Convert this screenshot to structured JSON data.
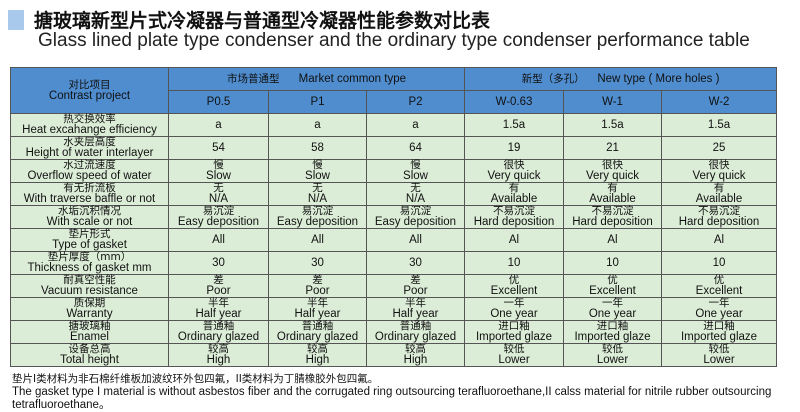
{
  "title_cn": "搪玻璃新型片式冷凝器与普通型冷凝器性能参数对比表",
  "title_en": "Glass lined plate type condenser and the ordinary type condenser performance table",
  "header": {
    "project_cn": "对比项目",
    "project_en": "Contrast project",
    "market_cn": "市场普通型",
    "market_en": "Market common type",
    "new_cn": "新型（多孔）",
    "new_en": "New type ( More holes )",
    "models": [
      "P0.5",
      "P1",
      "P2",
      "W-0.63",
      "W-1",
      "W-2"
    ]
  },
  "rows": [
    {
      "cn": "热交换效率",
      "en": "Heat excahange efficiency",
      "v": [
        [
          "",
          "a"
        ],
        [
          "",
          "a"
        ],
        [
          "",
          "a"
        ],
        [
          "",
          "1.5a"
        ],
        [
          "",
          "1.5a"
        ],
        [
          "",
          "1.5a"
        ]
      ]
    },
    {
      "cn": "水夹层高度",
      "en": "Height of water interlayer",
      "v": [
        [
          "",
          "54"
        ],
        [
          "",
          "58"
        ],
        [
          "",
          "64"
        ],
        [
          "",
          "19"
        ],
        [
          "",
          "21"
        ],
        [
          "",
          "25"
        ]
      ]
    },
    {
      "cn": "水过流速度",
      "en": "Overflow speed of water",
      "v": [
        [
          "慢",
          "Slow"
        ],
        [
          "慢",
          "Slow"
        ],
        [
          "慢",
          "Slow"
        ],
        [
          "很快",
          "Very quick"
        ],
        [
          "很快",
          "Very quick"
        ],
        [
          "很快",
          "Very quick"
        ]
      ]
    },
    {
      "cn": "有无折流板",
      "en": "With traverse baffle or not",
      "v": [
        [
          "无",
          "N/A"
        ],
        [
          "无",
          "N/A"
        ],
        [
          "无",
          "N/A"
        ],
        [
          "有",
          "Available"
        ],
        [
          "有",
          "Available"
        ],
        [
          "有",
          "Available"
        ]
      ]
    },
    {
      "cn": "水垢沉积情况",
      "en": "With scale or not",
      "v": [
        [
          "易沉淀",
          "Easy deposition"
        ],
        [
          "易沉淀",
          "Easy deposition"
        ],
        [
          "易沉淀",
          "Easy deposition"
        ],
        [
          "不易沉淀",
          "Hard deposition"
        ],
        [
          "不易沉淀",
          "Hard deposition"
        ],
        [
          "不易沉淀",
          "Hard deposition"
        ]
      ]
    },
    {
      "cn": "垫片形式",
      "en": "Type of gasket",
      "v": [
        [
          "",
          "All"
        ],
        [
          "",
          "All"
        ],
        [
          "",
          "All"
        ],
        [
          "",
          "Al"
        ],
        [
          "",
          "Al"
        ],
        [
          "",
          "Al"
        ]
      ]
    },
    {
      "cn": "垫片厚度（mm）",
      "en": "Thickness of gasket mm",
      "v": [
        [
          "",
          "30"
        ],
        [
          "",
          "30"
        ],
        [
          "",
          "30"
        ],
        [
          "",
          "10"
        ],
        [
          "",
          "10"
        ],
        [
          "",
          "10"
        ]
      ]
    },
    {
      "cn": "耐真空性能",
      "en": "Vacuum resistance",
      "v": [
        [
          "差",
          "Poor"
        ],
        [
          "差",
          "Poor"
        ],
        [
          "差",
          "Poor"
        ],
        [
          "优",
          "Excellent"
        ],
        [
          "优",
          "Excellent"
        ],
        [
          "优",
          "Excellent"
        ]
      ]
    },
    {
      "cn": "质保期",
      "en": "Warranty",
      "v": [
        [
          "半年",
          "Half year"
        ],
        [
          "半年",
          "Half year"
        ],
        [
          "半年",
          "Half year"
        ],
        [
          "一年",
          "One year"
        ],
        [
          "一年",
          "One year"
        ],
        [
          "一年",
          "One year"
        ]
      ]
    },
    {
      "cn": "搪玻璃釉",
      "en": "Enamel",
      "v": [
        [
          "普通釉",
          "Ordinary glazed"
        ],
        [
          "普通釉",
          "Ordinary glazed"
        ],
        [
          "普通釉",
          "Ordinary glazed"
        ],
        [
          "进口釉",
          "Imported glaze"
        ],
        [
          "进口釉",
          "Imported glaze"
        ],
        [
          "进口釉",
          "Imported glaze"
        ]
      ]
    },
    {
      "cn": "设备总高",
      "en": "Total height",
      "v": [
        [
          "较高",
          "High"
        ],
        [
          "较高",
          "High"
        ],
        [
          "较高",
          "High"
        ],
        [
          "较低",
          "Lower"
        ],
        [
          "较低",
          "Lower"
        ],
        [
          "较低",
          "Lower"
        ]
      ]
    }
  ],
  "footnote_cn": "垫片I类材料为非石棉纤维板加波纹环外包四氟，II类材料为丁腈橡胶外包四氟。",
  "footnote_en": "The gasket type I material is without asbestos fiber and the corrugated ring outsourcing terafluoroethane,II calss material for nitrile rubber outsourcing tetrafluoroethane。",
  "colors": {
    "header": "#4f8dcf",
    "rows": "#dcedd7",
    "title_marker": "#a9c9ec"
  }
}
